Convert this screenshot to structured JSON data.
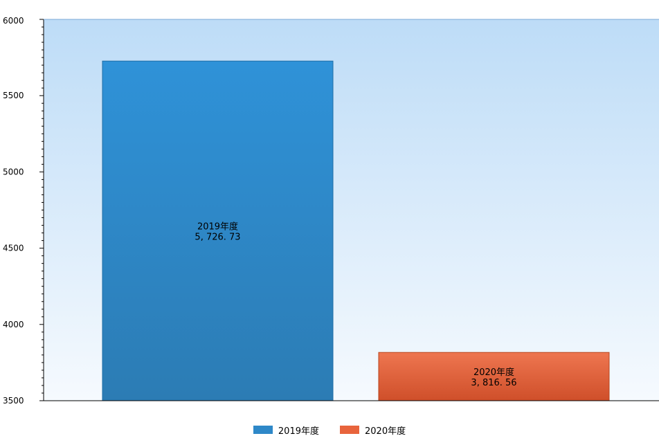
{
  "chart_data": {
    "type": "bar",
    "categories": [
      "2019年度",
      "2020年度"
    ],
    "values": [
      5726.73,
      3816.56
    ],
    "value_labels": [
      "5, 726. 73",
      "3, 816. 56"
    ],
    "ylim": [
      3500,
      6000
    ],
    "y_ticks": [
      3500,
      4000,
      4500,
      5000,
      5500,
      6000
    ],
    "colors": [
      "#2e88c8",
      "#e8643c"
    ],
    "legend": {
      "placement": "bottom-center",
      "items": [
        {
          "label": "2019年度",
          "color": "#2e88c8"
        },
        {
          "label": "2020年度",
          "color": "#e8643c"
        }
      ]
    },
    "background": "gradient light-blue"
  }
}
